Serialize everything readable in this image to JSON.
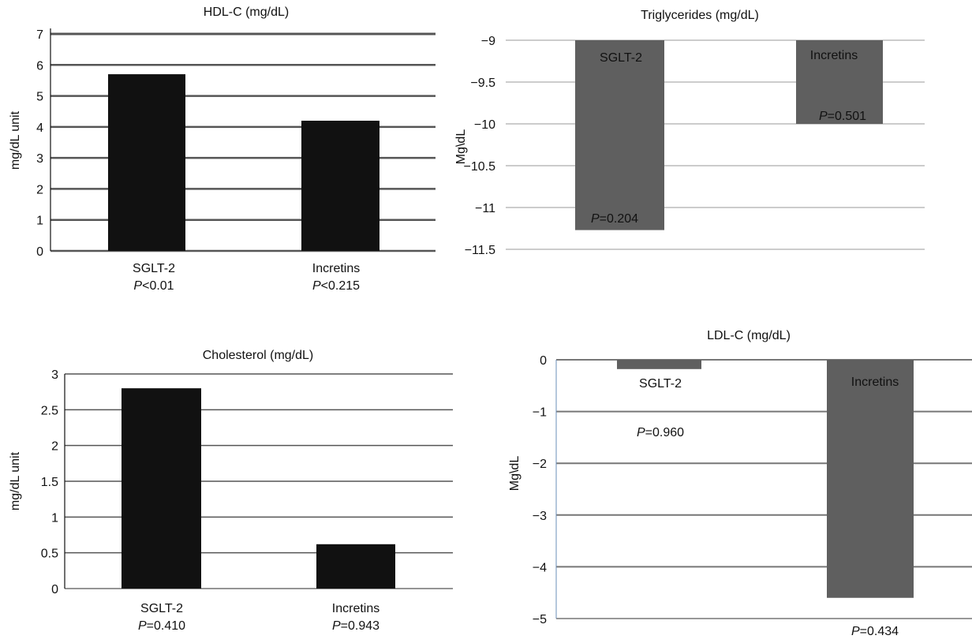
{
  "chart_data": [
    {
      "type": "bar",
      "title": "HDL-C (mg/dL)",
      "ylabel": "mg/dL unit",
      "ylim": [
        0,
        7
      ],
      "yticks": [
        0,
        1,
        2,
        3,
        4,
        5,
        6,
        7
      ],
      "grid": true,
      "categories": [
        "SGLT-2",
        "Incretins"
      ],
      "values": [
        5.7,
        4.2
      ],
      "p_labels": [
        {
          "prefix": "P",
          "rest": "<0.01"
        },
        {
          "prefix": "P",
          "rest": "<0.215"
        }
      ],
      "colors": {
        "bar": "#111111",
        "grid": "#555555"
      }
    },
    {
      "type": "bar",
      "title": "Triglycerides (mg/dL)",
      "ylabel": "Mg\\dL",
      "ylim": [
        -11.5,
        -9
      ],
      "yticks": [
        "−11.5",
        "−11",
        "−10.5",
        "−10",
        "−9.5",
        "−9"
      ],
      "ytick_values": [
        -11.5,
        -11,
        -10.5,
        -10,
        -9.5,
        -9
      ],
      "grid": true,
      "categories": [
        "SGLT-2",
        "Incretins"
      ],
      "values": [
        -11.27,
        -10.0
      ],
      "p_labels": [
        {
          "prefix": "P",
          "rest": "=0.204"
        },
        {
          "prefix": "P",
          "rest": "=0.501"
        }
      ],
      "colors": {
        "bar": "#5f5f5f",
        "grid": "#999999"
      }
    },
    {
      "type": "bar",
      "title": "Cholesterol (mg/dL)",
      "ylabel": "mg/dL unit",
      "ylim": [
        0,
        3
      ],
      "yticks": [
        "0",
        "0.5",
        "1",
        "1.5",
        "2",
        "2.5",
        "3"
      ],
      "ytick_values": [
        0,
        0.5,
        1,
        1.5,
        2,
        2.5,
        3
      ],
      "grid": true,
      "categories": [
        "SGLT-2",
        "Incretins"
      ],
      "values": [
        2.8,
        0.62
      ],
      "p_labels": [
        {
          "prefix": "P",
          "rest": "=0.410"
        },
        {
          "prefix": "P",
          "rest": "=0.943"
        }
      ],
      "colors": {
        "bar": "#111111",
        "grid": "#555555"
      }
    },
    {
      "type": "bar",
      "title": "LDL-C (mg/dL)",
      "ylabel": "Mg\\dL",
      "ylim": [
        -5,
        0
      ],
      "yticks": [
        "−5",
        "−4",
        "−3",
        "−2",
        "−1",
        "0"
      ],
      "ytick_values": [
        -5,
        -4,
        -3,
        -2,
        -1,
        0
      ],
      "grid": true,
      "categories": [
        "SGLT-2",
        "Incretins"
      ],
      "values": [
        -0.18,
        -4.6
      ],
      "p_labels": [
        {
          "prefix": "P",
          "rest": "=0.960"
        },
        {
          "prefix": "P",
          "rest": "=0.434"
        }
      ],
      "colors": {
        "bar": "#5f5f5f",
        "grid": "#777777"
      }
    }
  ]
}
